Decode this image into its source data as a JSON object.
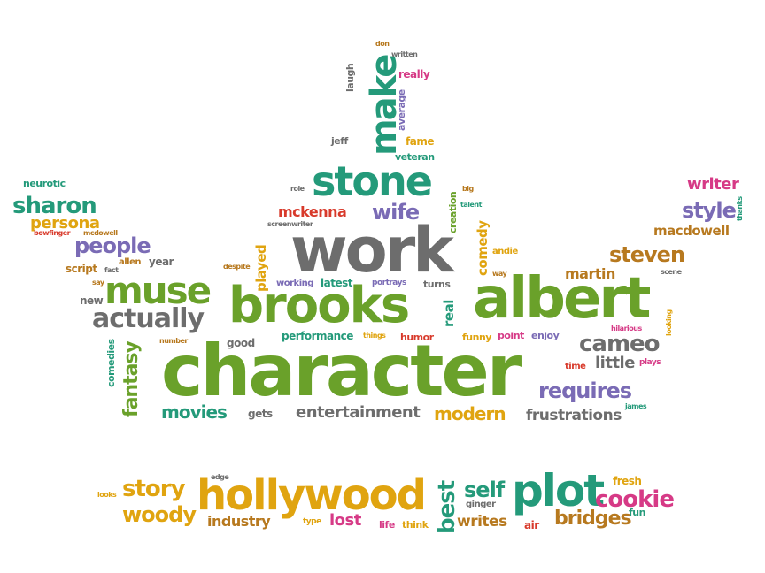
{
  "palette": {
    "green": "#6aa12a",
    "teal": "#249a7a",
    "gray": "#6d6d6d",
    "purple": "#7a6bb5",
    "orange": "#e0a410",
    "brown": "#b7791f",
    "magenta": "#d63a86",
    "red": "#d83a2b"
  },
  "words": [
    {
      "text": "character",
      "color": "green"
    },
    {
      "text": "work",
      "color": "gray"
    },
    {
      "text": "albert",
      "color": "green"
    },
    {
      "text": "brooks",
      "color": "green"
    },
    {
      "text": "hollywood",
      "color": "orange"
    },
    {
      "text": "plot",
      "color": "teal"
    },
    {
      "text": "muse",
      "color": "green"
    },
    {
      "text": "stone",
      "color": "teal"
    },
    {
      "text": "make",
      "color": "teal"
    },
    {
      "text": "actually",
      "color": "gray"
    },
    {
      "text": "cameo",
      "color": "gray"
    },
    {
      "text": "sharon",
      "color": "teal"
    },
    {
      "text": "people",
      "color": "purple"
    },
    {
      "text": "story",
      "color": "orange"
    },
    {
      "text": "woody",
      "color": "orange"
    },
    {
      "text": "cookie",
      "color": "magenta"
    },
    {
      "text": "bridges",
      "color": "brown"
    },
    {
      "text": "best",
      "color": "teal"
    },
    {
      "text": "self",
      "color": "teal"
    },
    {
      "text": "requires",
      "color": "purple"
    },
    {
      "text": "steven",
      "color": "brown"
    },
    {
      "text": "style",
      "color": "purple"
    },
    {
      "text": "wife",
      "color": "purple"
    },
    {
      "text": "movies",
      "color": "teal"
    },
    {
      "text": "modern",
      "color": "orange"
    },
    {
      "text": "fantasy",
      "color": "green"
    },
    {
      "text": "entertainment",
      "color": "gray"
    },
    {
      "text": "frustrations",
      "color": "gray"
    },
    {
      "text": "persona",
      "color": "orange"
    },
    {
      "text": "writer",
      "color": "magenta"
    },
    {
      "text": "macdowell",
      "color": "brown"
    },
    {
      "text": "mckenna",
      "color": "red"
    },
    {
      "text": "industry",
      "color": "brown"
    },
    {
      "text": "writes",
      "color": "brown"
    },
    {
      "text": "lost",
      "color": "magenta"
    },
    {
      "text": "little",
      "color": "gray"
    },
    {
      "text": "martin",
      "color": "brown"
    },
    {
      "text": "comedy",
      "color": "orange"
    },
    {
      "text": "played",
      "color": "orange"
    },
    {
      "text": "real",
      "color": "teal"
    },
    {
      "text": "performance",
      "color": "teal"
    },
    {
      "text": "fame",
      "color": "orange"
    },
    {
      "text": "veteran",
      "color": "teal"
    },
    {
      "text": "jeff",
      "color": "gray"
    },
    {
      "text": "really",
      "color": "magenta"
    },
    {
      "text": "average",
      "color": "purple"
    },
    {
      "text": "laugh",
      "color": "gray"
    },
    {
      "text": "written",
      "color": "gray"
    },
    {
      "text": "don",
      "color": "brown"
    },
    {
      "text": "role",
      "color": "gray"
    },
    {
      "text": "screenwriter",
      "color": "gray"
    },
    {
      "text": "creation",
      "color": "green"
    },
    {
      "text": "big",
      "color": "brown"
    },
    {
      "text": "talent",
      "color": "teal"
    },
    {
      "text": "andie",
      "color": "orange"
    },
    {
      "text": "way",
      "color": "brown"
    },
    {
      "text": "neurotic",
      "color": "teal"
    },
    {
      "text": "bowfinger",
      "color": "red"
    },
    {
      "text": "mcdowell",
      "color": "brown"
    },
    {
      "text": "script",
      "color": "brown"
    },
    {
      "text": "fact",
      "color": "gray"
    },
    {
      "text": "allen",
      "color": "brown"
    },
    {
      "text": "year",
      "color": "gray"
    },
    {
      "text": "say",
      "color": "brown"
    },
    {
      "text": "new",
      "color": "gray"
    },
    {
      "text": "comedies",
      "color": "teal"
    },
    {
      "text": "number",
      "color": "brown"
    },
    {
      "text": "good",
      "color": "gray"
    },
    {
      "text": "despite",
      "color": "brown"
    },
    {
      "text": "working",
      "color": "purple"
    },
    {
      "text": "latest",
      "color": "teal"
    },
    {
      "text": "portrays",
      "color": "purple"
    },
    {
      "text": "turns",
      "color": "gray"
    },
    {
      "text": "things",
      "color": "orange"
    },
    {
      "text": "humor",
      "color": "red"
    },
    {
      "text": "funny",
      "color": "orange"
    },
    {
      "text": "point",
      "color": "magenta"
    },
    {
      "text": "enjoy",
      "color": "purple"
    },
    {
      "text": "gets",
      "color": "gray"
    },
    {
      "text": "time",
      "color": "red"
    },
    {
      "text": "plays",
      "color": "magenta"
    },
    {
      "text": "hilarious",
      "color": "magenta"
    },
    {
      "text": "looking",
      "color": "orange"
    },
    {
      "text": "scene",
      "color": "gray"
    },
    {
      "text": "thanks",
      "color": "teal"
    },
    {
      "text": "james",
      "color": "teal"
    },
    {
      "text": "edge",
      "color": "gray"
    },
    {
      "text": "looks",
      "color": "orange"
    },
    {
      "text": "type",
      "color": "orange"
    },
    {
      "text": "life",
      "color": "magenta"
    },
    {
      "text": "think",
      "color": "orange"
    },
    {
      "text": "ginger",
      "color": "gray"
    },
    {
      "text": "air",
      "color": "red"
    },
    {
      "text": "fresh",
      "color": "orange"
    },
    {
      "text": "fun",
      "color": "teal"
    }
  ]
}
